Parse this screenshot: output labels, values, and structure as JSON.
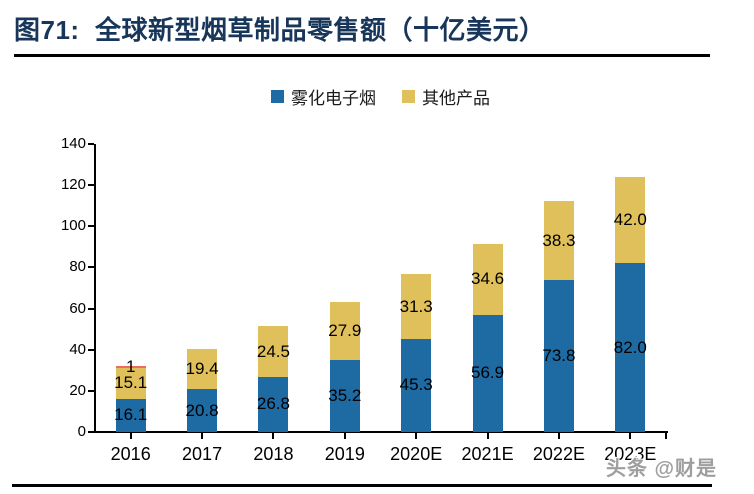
{
  "figure": {
    "title": "图71:  全球新型烟草制品零售额（十亿美元）",
    "watermark": "头条 @财是"
  },
  "legend": [
    {
      "label": "雾化电子烟",
      "color": "#1e6aa3"
    },
    {
      "label": "其他产品",
      "color": "#dfc05a"
    }
  ],
  "chart_data": {
    "type": "bar",
    "stacked": true,
    "title": "全球新型烟草制品零售额（十亿美元）",
    "categories": [
      "2016",
      "2017",
      "2018",
      "2019",
      "2020E",
      "2021E",
      "2022E",
      "2023E"
    ],
    "series": [
      {
        "name": "雾化电子烟",
        "color": "#1e6aa3",
        "values": [
          16.1,
          20.8,
          26.8,
          35.2,
          45.3,
          56.9,
          73.8,
          82.0
        ],
        "labels": [
          "16.1",
          "20.8",
          "26.8",
          "35.2",
          "45.3",
          "56.9",
          "73.8",
          "82.0"
        ]
      },
      {
        "name": "其他产品",
        "color": "#dfc05a",
        "values": [
          15.1,
          19.4,
          24.5,
          27.9,
          31.3,
          34.6,
          38.3,
          42.0
        ],
        "labels": [
          "15.1",
          "19.4",
          "24.5",
          "27.9",
          "31.3",
          "34.6",
          "38.3",
          "42.0"
        ]
      },
      {
        "name": "顶部红色小分段",
        "color": "#ec6d5f",
        "values": [
          1,
          0,
          0,
          0,
          0,
          0,
          0,
          0
        ],
        "labels": [
          "1",
          "",
          "",
          "",
          "",
          "",
          "",
          ""
        ]
      }
    ],
    "ylim": [
      0,
      140
    ],
    "y_ticks": [
      0,
      20,
      40,
      60,
      80,
      100,
      120,
      140
    ],
    "grid": false,
    "legend_position": "top"
  }
}
